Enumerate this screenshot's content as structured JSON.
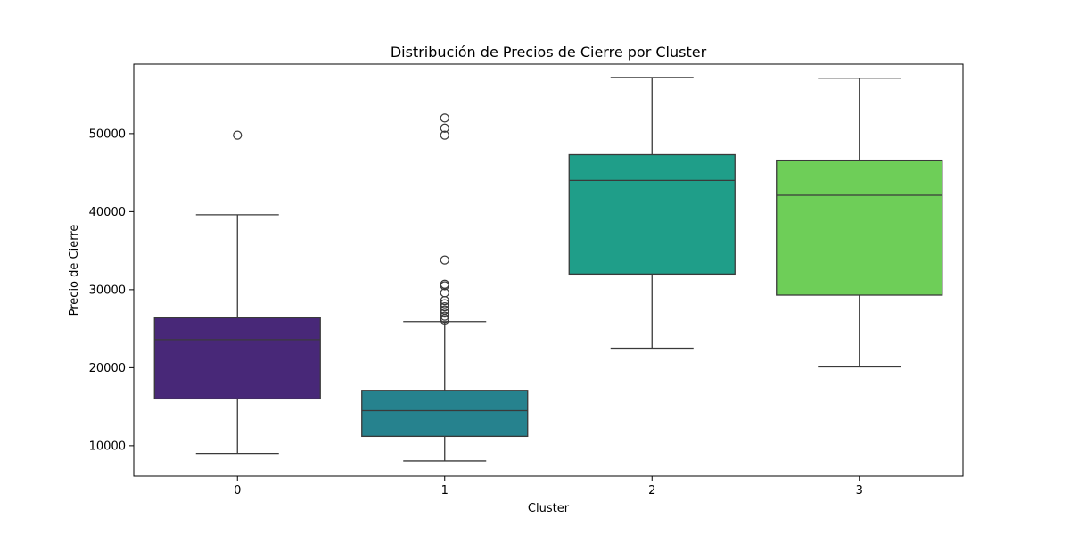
{
  "chart_data": {
    "type": "box",
    "title": "Distribución de Precios de Cierre por Cluster",
    "xlabel": "Cluster",
    "ylabel": "Precio de Cierre",
    "categories": [
      "0",
      "1",
      "2",
      "3"
    ],
    "ylim": [
      6100,
      58900
    ],
    "yticks": [
      10000,
      20000,
      30000,
      40000,
      50000
    ],
    "grid": false,
    "legend": "none",
    "boxes": [
      {
        "category": "0",
        "color": "#482878",
        "whisker_low": 9000,
        "q1": 16000,
        "median": 23600,
        "q3": 26400,
        "whisker_high": 39600,
        "outliers": [
          49800
        ]
      },
      {
        "category": "1",
        "color": "#26828e",
        "whisker_low": 8050,
        "q1": 11200,
        "median": 14500,
        "q3": 17100,
        "whisker_high": 25900,
        "outliers": [
          26100,
          26300,
          26600,
          27000,
          27400,
          27800,
          28200,
          28600,
          29600,
          30500,
          30700,
          33800,
          49800,
          50700,
          52000
        ]
      },
      {
        "category": "2",
        "color": "#1f9e89",
        "whisker_low": 22500,
        "q1": 32000,
        "median": 44000,
        "q3": 47300,
        "whisker_high": 57200,
        "outliers": []
      },
      {
        "category": "3",
        "color": "#6ece58",
        "whisker_low": 20100,
        "q1": 29300,
        "median": 42100,
        "q3": 46600,
        "whisker_high": 57100,
        "outliers": []
      }
    ]
  }
}
